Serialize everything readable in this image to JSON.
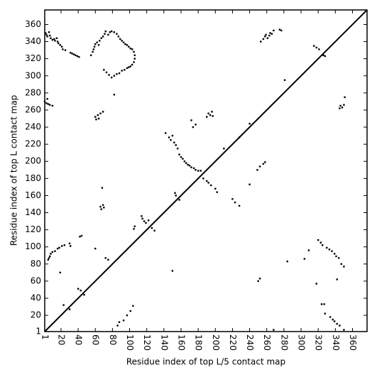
{
  "chart_data": {
    "type": "scatter",
    "xlabel": "Residue index of top L/5 contact map",
    "ylabel": "Residue index of top L contact map",
    "xlim": [
      1,
      377
    ],
    "ylim": [
      1,
      377
    ],
    "xticks": [
      1,
      20,
      40,
      60,
      80,
      100,
      120,
      140,
      160,
      180,
      200,
      220,
      240,
      260,
      280,
      300,
      320,
      340,
      360
    ],
    "yticks": [
      1,
      20,
      40,
      60,
      80,
      100,
      120,
      140,
      160,
      180,
      200,
      220,
      240,
      260,
      280,
      300,
      320,
      340,
      360
    ],
    "diagonal": true,
    "series": [
      {
        "color": "#000000",
        "x": [
          2,
          3,
          4,
          6,
          7,
          8,
          10,
          12,
          13,
          15,
          16,
          17,
          19,
          21,
          22,
          25,
          31,
          33,
          35,
          37,
          39,
          41,
          55,
          57,
          58,
          59,
          60,
          62,
          64,
          65,
          67,
          69,
          71,
          72,
          75,
          77,
          79,
          82,
          85,
          87,
          89,
          91,
          93,
          95,
          97,
          99,
          101,
          103,
          105,
          106,
          106,
          105,
          103,
          101,
          99,
          97,
          94,
          91,
          88,
          85,
          82,
          79,
          76,
          73,
          70,
          82,
          1,
          3,
          5,
          7,
          10,
          4,
          60,
          61,
          63,
          64,
          66,
          69,
          68,
          66,
          67,
          69,
          70,
          172,
          174,
          177,
          190,
          192,
          194,
          196,
          197,
          142,
          146,
          148,
          150,
          152,
          154,
          156,
          158,
          160,
          162,
          164,
          166,
          168,
          170,
          172,
          175,
          177,
          180,
          183,
          186,
          190,
          192,
          195,
          200,
          202,
          154,
          153,
          158,
          114,
          115,
          117,
          119,
          122,
          126,
          129,
          105,
          106,
          42,
          44,
          5,
          6,
          7,
          8,
          10,
          13,
          16,
          18,
          21,
          24,
          30,
          31,
          60,
          72,
          75,
          19,
          40,
          43,
          47,
          23,
          30,
          210,
          240,
          228,
          256,
          258,
          259,
          261,
          263,
          264,
          266,
          268,
          275,
          277,
          253,
          281,
          315,
          318,
          321,
          326,
          328,
          345,
          346,
          348,
          350,
          351,
          150,
          240,
          220,
          223,
          228,
          249,
          252,
          256,
          258,
          250,
          252,
          268,
          284,
          304,
          309,
          320,
          323,
          325,
          330,
          333,
          336,
          339,
          341,
          344,
          347,
          350,
          318,
          324,
          327,
          328,
          334,
          337,
          339,
          342,
          345,
          350,
          342,
          86,
          88,
          93,
          97,
          101,
          104
        ],
        "values": [
          350,
          348,
          346,
          351,
          347,
          344,
          342,
          343,
          341,
          344,
          340,
          338,
          336,
          334,
          331,
          330,
          327,
          326,
          325,
          324,
          323,
          322,
          324,
          328,
          331,
          334,
          337,
          339,
          336,
          341,
          344,
          346,
          349,
          352,
          348,
          351,
          352,
          351,
          349,
          346,
          343,
          341,
          339,
          337,
          336,
          334,
          332,
          331,
          328,
          324,
          320,
          316,
          313,
          311,
          310,
          309,
          307,
          306,
          303,
          302,
          300,
          298,
          301,
          304,
          307,
          278,
          270,
          268,
          267,
          266,
          265,
          273,
          252,
          249,
          254,
          250,
          256,
          258,
          169,
          147,
          144,
          149,
          146,
          248,
          240,
          243,
          252,
          256,
          254,
          258,
          253,
          233,
          228,
          225,
          230,
          222,
          219,
          215,
          208,
          205,
          203,
          200,
          198,
          196,
          195,
          193,
          192,
          190,
          189,
          189,
          180,
          177,
          175,
          172,
          168,
          164,
          160,
          163,
          155,
          136,
          133,
          130,
          128,
          131,
          122,
          119,
          121,
          124,
          112,
          113,
          85,
          87,
          89,
          92,
          94,
          95,
          98,
          99,
          101,
          102,
          104,
          101,
          98,
          87,
          85,
          70,
          51,
          49,
          44,
          32,
          27,
          215,
          244,
          228,
          343,
          346,
          348,
          344,
          347,
          350,
          349,
          353,
          354,
          353,
          340,
          295,
          335,
          333,
          331,
          324,
          323,
          262,
          265,
          263,
          266,
          275,
          72,
          173,
          156,
          152,
          148,
          190,
          194,
          197,
          199,
          60,
          63,
          3,
          83,
          86,
          96,
          108,
          105,
          102,
          99,
          97,
          95,
          92,
          89,
          87,
          80,
          77,
          57,
          33,
          33,
          22,
          18,
          15,
          13,
          10,
          8,
          3,
          62,
          8,
          12,
          14,
          20,
          25,
          31
        ]
      }
    ]
  }
}
